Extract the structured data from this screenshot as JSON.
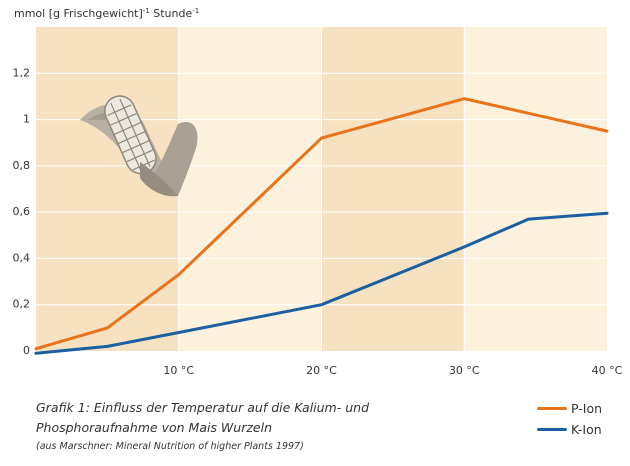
{
  "chart_data": {
    "type": "line",
    "ylabel_main": "mmol [g Frischgewicht]",
    "ylabel_exp1": "-1",
    "ylabel_unit": " Stunde",
    "ylabel_exp2": "-1",
    "ylim": [
      0,
      1.4
    ],
    "yticks": [
      {
        "value": 0,
        "label": "0"
      },
      {
        "value": 0.2,
        "label": "0,2"
      },
      {
        "value": 0.4,
        "label": "0,4"
      },
      {
        "value": 0.6,
        "label": "0,6"
      },
      {
        "value": 0.8,
        "label": "0,8"
      },
      {
        "value": 1.0,
        "label": "1"
      },
      {
        "value": 1.2,
        "label": "1,2"
      }
    ],
    "xlim": [
      0,
      40
    ],
    "xticks": [
      {
        "value": 10,
        "label": "10 °C"
      },
      {
        "value": 20,
        "label": "20 °C"
      },
      {
        "value": 30,
        "label": "30 °C"
      },
      {
        "value": 40,
        "label": "40 °C"
      }
    ],
    "series": [
      {
        "name": "P-Ion",
        "color": "#e8731a",
        "points": [
          [
            0,
            0.01
          ],
          [
            5,
            0.1
          ],
          [
            10,
            0.33
          ],
          [
            20,
            0.92
          ],
          [
            30,
            1.09
          ],
          [
            40,
            0.95
          ]
        ]
      },
      {
        "name": "K-Ion",
        "color": "#1a5fa0",
        "points": [
          [
            0,
            -0.01
          ],
          [
            5,
            0.02
          ],
          [
            10,
            0.08
          ],
          [
            20,
            0.2
          ],
          [
            30,
            0.45
          ],
          [
            34.5,
            0.57
          ],
          [
            40,
            0.595
          ]
        ]
      }
    ],
    "caption_line1": "Grafik 1: Einfluss der Temperatur auf die Kalium- und",
    "caption_line2": "Phosphoraufnahme von Mais Wurzeln",
    "source": "(aus Marschner: Mineral Nutrition of higher Plants 1997)",
    "band_colors": [
      "#f6e2c0",
      "#fbf1dc"
    ],
    "icon": "corn-cob-icon"
  }
}
